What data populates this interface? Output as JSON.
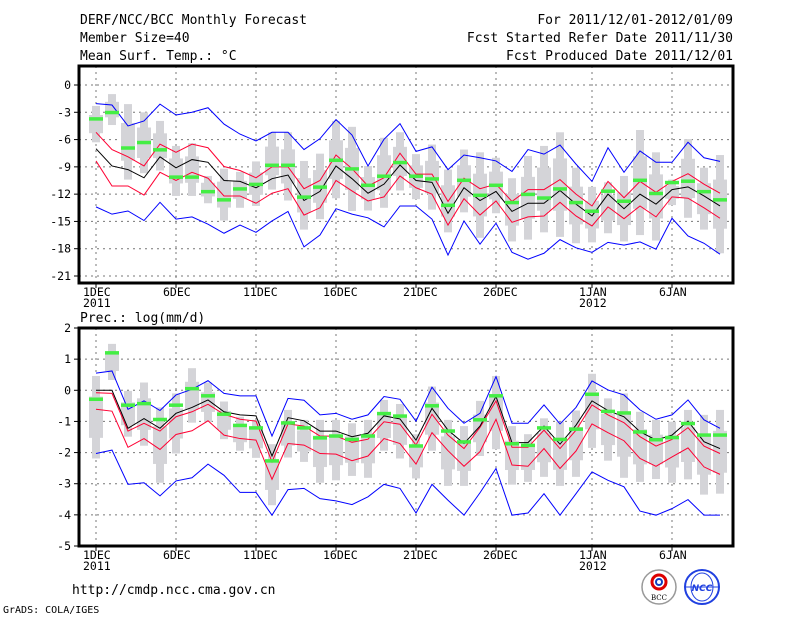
{
  "header": {
    "title": "DERF/NCC/BCC Monthly Forecast",
    "member_size": "Member Size=40",
    "variable_temp": "Mean Surf. Temp.: °C",
    "period": "For 2011/12/01-2012/01/09",
    "start_date": "Fcst Started Refer Date 2011/11/30",
    "produced_date": "Fcst Produced Date 2011/12/01"
  },
  "footer": {
    "url": "http://cmdp.ncc.cma.gov.cn",
    "grads": "GrADS: COLA/IGES",
    "logo_left": "BCC",
    "logo_right": "NCC"
  },
  "colors": {
    "upper_lower_outer": "#0000ff",
    "upper_lower_inner": "#ff0033",
    "median": "#000000",
    "marker": "#44ee44",
    "bar": "#d4d4d8"
  },
  "chart_data": [
    {
      "type": "line",
      "title": "Mean Surf. Temp.: °C",
      "ylim": [
        -21,
        0
      ],
      "yticks": [
        "0",
        "-3",
        "-6",
        "-9",
        "-12",
        "-15",
        "-18",
        "-21"
      ],
      "ytick_values": [
        0,
        -3,
        -6,
        -9,
        -12,
        -15,
        -18,
        -21
      ],
      "xtick_days": [
        0,
        5,
        10,
        15,
        20,
        25,
        31,
        36
      ],
      "xtick_labels": [
        "1DEC",
        "6DEC",
        "11DEC",
        "16DEC",
        "21DEC",
        "26DEC",
        "1JAN",
        "6JAN"
      ],
      "xtick_sublabels": {
        "0": "2011",
        "6": "2012"
      },
      "grid": true,
      "days": 40,
      "series": [
        {
          "name": "blue_upper",
          "values": [
            -2.05,
            -2.2,
            -4.5,
            -3.95,
            -2.1,
            -3.3,
            -3.0,
            -2.5,
            -4.3,
            -5.4,
            -6.15,
            -5.2,
            -5.2,
            -7.1,
            -5.9,
            -3.8,
            -5.5,
            -8.9,
            -5.97,
            -4.25,
            -7.3,
            -6.8,
            -9.3,
            -7.7,
            -8.0,
            -8.35,
            -9.5,
            -7.1,
            -7.6,
            -6.6,
            -8.7,
            -10.6,
            -6.9,
            -9.6,
            -7.25,
            -8.5,
            -8.5,
            -6.3,
            -8.0,
            -8.4
          ]
        },
        {
          "name": "red_upper",
          "values": [
            -5.2,
            -7.1,
            -7.9,
            -8.9,
            -6.5,
            -7.4,
            -6.5,
            -6.9,
            -8.96,
            -9.4,
            -10.2,
            -9.0,
            -9.0,
            -11.4,
            -10.5,
            -7.7,
            -9.2,
            -11.1,
            -10.2,
            -7.5,
            -9.8,
            -9.8,
            -12.8,
            -10.25,
            -11.4,
            -10.9,
            -12.8,
            -11.5,
            -11.5,
            -10.4,
            -12.0,
            -13.3,
            -10.6,
            -12.4,
            -10.6,
            -11.8,
            -10.6,
            -9.75,
            -10.9,
            -11.9
          ]
        },
        {
          "name": "median",
          "values": [
            -7.0,
            -8.9,
            -9.3,
            -10.2,
            -7.9,
            -9.1,
            -8.2,
            -8.5,
            -10.5,
            -10.6,
            -11.3,
            -10.3,
            -9.9,
            -12.7,
            -11.7,
            -8.9,
            -10.3,
            -11.9,
            -10.9,
            -8.8,
            -10.5,
            -10.7,
            -14.1,
            -11.3,
            -12.7,
            -11.7,
            -13.9,
            -13.0,
            -13.0,
            -11.6,
            -13.1,
            -14.4,
            -12.0,
            -13.6,
            -12.0,
            -13.1,
            -11.5,
            -11.2,
            -12.2,
            -13.3
          ]
        },
        {
          "name": "red_lower",
          "values": [
            -8.35,
            -11.1,
            -11.1,
            -12.1,
            -9.6,
            -10.5,
            -9.6,
            -10.25,
            -12.2,
            -12.2,
            -13.0,
            -11.9,
            -11.4,
            -14.3,
            -13.5,
            -10.5,
            -11.65,
            -12.75,
            -12.3,
            -10.0,
            -11.3,
            -12.0,
            -15.4,
            -12.5,
            -14.3,
            -12.75,
            -15.1,
            -14.5,
            -14.4,
            -12.9,
            -14.4,
            -15.5,
            -13.4,
            -14.7,
            -13.3,
            -14.5,
            -12.3,
            -12.45,
            -13.5,
            -14.65
          ]
        },
        {
          "name": "blue_lower",
          "values": [
            -13.4,
            -14.2,
            -13.85,
            -14.9,
            -12.9,
            -14.75,
            -14.5,
            -15.3,
            -16.3,
            -15.4,
            -16.2,
            -14.95,
            -13.9,
            -17.8,
            -16.5,
            -13.6,
            -14.2,
            -14.6,
            -15.6,
            -13.3,
            -13.3,
            -14.75,
            -18.7,
            -14.95,
            -17.5,
            -15.2,
            -18.4,
            -19.15,
            -18.5,
            -17.0,
            -17.9,
            -18.4,
            -17.3,
            -17.6,
            -17.25,
            -18.05,
            -14.65,
            -16.6,
            -17.4,
            -18.6
          ]
        },
        {
          "name": "marker",
          "values": [
            -3.7,
            -3.0,
            -6.9,
            -6.3,
            -7.1,
            -10.1,
            -10.1,
            -11.7,
            -12.6,
            -11.4,
            -10.9,
            -8.8,
            -8.8,
            -12.3,
            -11.2,
            -8.25,
            -9.2,
            -11.0,
            -10.0,
            -8.5,
            -10.0,
            -10.3,
            -13.2,
            -10.45,
            -12.1,
            -11.0,
            -12.9,
            -12.0,
            -12.4,
            -11.4,
            -12.9,
            -13.85,
            -11.65,
            -12.75,
            -10.45,
            -11.9,
            -10.7,
            -10.55,
            -11.7,
            -12.6
          ]
        }
      ],
      "bar_max": [
        -2.3,
        -1.0,
        -2.1,
        -3.0,
        -3.95,
        -6.7,
        -6.4,
        -10.0,
        -9.2,
        -9.55,
        -8.4,
        -5.2,
        -5.2,
        -8.35,
        -7.55,
        -3.95,
        -4.6,
        -8.9,
        -5.8,
        -5.2,
        -7.6,
        -6.55,
        -9.3,
        -7.1,
        -7.4,
        -8.0,
        -10.25,
        -7.8,
        -6.7,
        -5.2,
        -9.1,
        -11.2,
        -10.7,
        -10.0,
        -4.95,
        -7.4,
        -10.4,
        -5.95,
        -9.1,
        -7.7
      ],
      "bar_min": [
        -6.3,
        -4.4,
        -10.4,
        -9.7,
        -9.4,
        -12.2,
        -12.2,
        -13.0,
        -14.9,
        -13.5,
        -13.3,
        -11.5,
        -12.7,
        -15.9,
        -14.75,
        -12.45,
        -13.85,
        -13.8,
        -13.5,
        -11.6,
        -12.55,
        -13.7,
        -16.2,
        -14.0,
        -16.8,
        -14.1,
        -17.2,
        -17.0,
        -16.2,
        -16.7,
        -17.4,
        -17.3,
        -16.3,
        -17.2,
        -16.5,
        -17.1,
        -13.2,
        -14.6,
        -15.9,
        -18.5
      ]
    },
    {
      "type": "line",
      "title": "Prec.: log(mm/d)",
      "ylim": [
        -5,
        2
      ],
      "yticks": [
        "2",
        "1",
        "0",
        "-1",
        "-2",
        "-3",
        "-4",
        "-5"
      ],
      "ytick_values": [
        2,
        1,
        0,
        -1,
        -2,
        -3,
        -4,
        -5
      ],
      "xtick_days": [
        0,
        5,
        10,
        15,
        20,
        25,
        31,
        36
      ],
      "xtick_labels": [
        "1DEC",
        "6DEC",
        "11DEC",
        "16DEC",
        "21DEC",
        "26DEC",
        "1JAN",
        "6JAN"
      ],
      "xtick_sublabels": {
        "0": "2011",
        "6": "2012"
      },
      "grid": true,
      "days": 40,
      "series": [
        {
          "name": "blue_upper",
          "values": [
            0.55,
            0.62,
            -0.61,
            -0.34,
            -0.65,
            -0.15,
            0.03,
            0.31,
            -0.1,
            -0.18,
            -0.18,
            -1.47,
            -0.26,
            -0.32,
            -0.79,
            -0.74,
            -0.93,
            -0.79,
            -0.2,
            -0.29,
            -0.99,
            0.1,
            -0.58,
            -1.06,
            -0.74,
            0.44,
            -1.06,
            -1.06,
            -0.47,
            -1.08,
            -0.55,
            0.3,
            0.01,
            -0.15,
            -0.63,
            -0.93,
            -0.79,
            -0.31,
            -0.95,
            -1.22
          ]
        },
        {
          "name": "red_upper",
          "values": [
            -0.08,
            -0.1,
            -1.31,
            -1.06,
            -1.31,
            -0.85,
            -0.69,
            -0.45,
            -0.77,
            -0.93,
            -0.99,
            -2.3,
            -1.08,
            -1.15,
            -1.47,
            -1.47,
            -1.67,
            -1.57,
            -1.01,
            -1.09,
            -1.76,
            -0.77,
            -1.44,
            -1.87,
            -1.19,
            -0.34,
            -1.83,
            -1.83,
            -1.28,
            -1.87,
            -1.28,
            -0.47,
            -0.79,
            -1.04,
            -1.49,
            -1.79,
            -1.58,
            -1.2,
            -1.79,
            -2.03
          ]
        },
        {
          "name": "median",
          "values": [
            0,
            0,
            -1.22,
            -0.91,
            -1.22,
            -0.74,
            -0.55,
            -0.31,
            -0.69,
            -0.79,
            -0.82,
            -2.11,
            -0.88,
            -0.98,
            -1.31,
            -1.31,
            -1.49,
            -1.38,
            -0.82,
            -0.92,
            -1.6,
            -0.58,
            -1.28,
            -1.71,
            -1.15,
            -0.2,
            -1.68,
            -1.68,
            -1.15,
            -1.73,
            -1.12,
            -0.34,
            -0.65,
            -0.85,
            -1.33,
            -1.6,
            -1.44,
            -0.99,
            -1.65,
            -1.87
          ]
        },
        {
          "name": "red_lower",
          "values": [
            -0.61,
            -0.67,
            -1.83,
            -1.55,
            -1.9,
            -1.42,
            -1.3,
            -0.98,
            -1.44,
            -1.55,
            -1.6,
            -2.86,
            -1.71,
            -1.76,
            -2.03,
            -2.05,
            -2.26,
            -2.11,
            -1.55,
            -1.71,
            -2.37,
            -1.36,
            -1.94,
            -2.44,
            -1.97,
            -0.93,
            -2.4,
            -2.44,
            -1.87,
            -2.51,
            -1.95,
            -1.08,
            -1.36,
            -1.62,
            -2.19,
            -2.44,
            -2.14,
            -1.85,
            -2.46,
            -2.7
          ]
        },
        {
          "name": "blue_lower",
          "values": [
            -2.03,
            -1.92,
            -3.02,
            -2.97,
            -3.39,
            -2.91,
            -2.81,
            -2.37,
            -2.73,
            -3.28,
            -3.28,
            -4.01,
            -3.19,
            -3.15,
            -3.48,
            -3.55,
            -3.67,
            -3.42,
            -3.02,
            -3.15,
            -3.94,
            -3.02,
            -3.53,
            -4.01,
            -3.29,
            -2.51,
            -4.01,
            -3.94,
            -3.32,
            -4.01,
            -3.32,
            -2.62,
            -2.89,
            -3.1,
            -3.88,
            -4.01,
            -3.8,
            -3.51,
            -4.01,
            -4.01
          ]
        },
        {
          "name": "marker",
          "values": [
            -0.28,
            1.21,
            -0.47,
            -0.42,
            -0.93,
            -0.47,
            0.06,
            -0.17,
            -0.76,
            -1.12,
            -1.2,
            -2.26,
            -1.04,
            -1.2,
            -1.52,
            -1.46,
            -1.57,
            -1.46,
            -0.74,
            -0.82,
            -1.78,
            -0.49,
            -1.3,
            -1.65,
            -0.94,
            -0.17,
            -1.71,
            -1.76,
            -1.2,
            -1.57,
            -1.24,
            -0.12,
            -0.67,
            -0.72,
            -1.33,
            -1.58,
            -1.51,
            -1.06,
            -1.43,
            -1.43
          ]
        }
      ],
      "bar_max": [
        0.46,
        1.49,
        -0.02,
        0.25,
        -0.55,
        -0.1,
        0.71,
        0.25,
        -0.36,
        -0.85,
        -0.95,
        -1.73,
        -0.63,
        -0.95,
        -0.95,
        -0.95,
        -1.06,
        -0.95,
        -0.31,
        -0.44,
        -1.41,
        0.12,
        -0.95,
        -1.15,
        -0.34,
        0.46,
        -1.15,
        -1.41,
        -0.9,
        -1.01,
        -0.65,
        0.53,
        -0.26,
        -0.1,
        -0.69,
        -0.95,
        -1.01,
        -0.63,
        -0.79,
        -0.63
      ],
      "bar_min": [
        -2.19,
        0.33,
        -1.49,
        -1.78,
        -2.97,
        -2.03,
        -1.04,
        -1.01,
        -1.57,
        -1.94,
        -2.17,
        -3.69,
        -2.16,
        -2.3,
        -2.97,
        -2.89,
        -2.75,
        -2.81,
        -1.94,
        -2.19,
        -2.83,
        -1.94,
        -3.07,
        -3.07,
        -2.11,
        -1.89,
        -3.03,
        -2.94,
        -2.78,
        -3.07,
        -2.78,
        -1.85,
        -2.26,
        -2.81,
        -2.94,
        -2.85,
        -2.97,
        -2.86,
        -3.35,
        -3.32
      ]
    }
  ]
}
